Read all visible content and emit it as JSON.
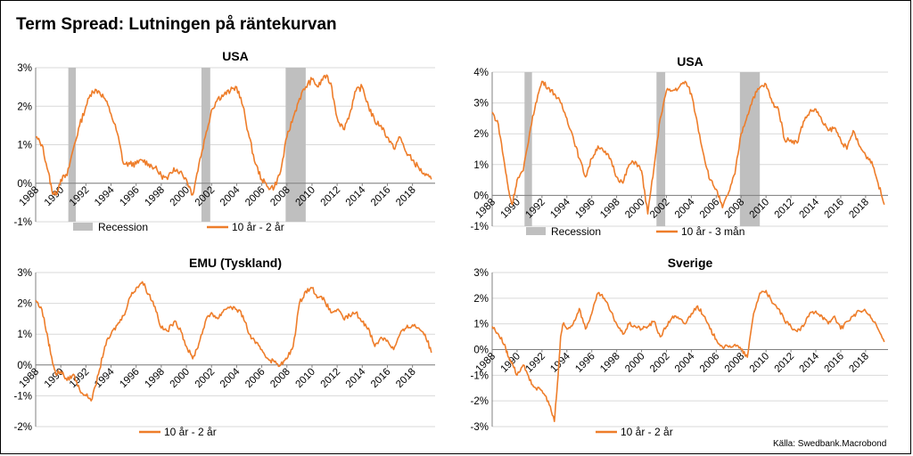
{
  "title": "Term Spread: Lutningen på räntekurvan",
  "source": "Källa: Swedbank.Macrobond",
  "colors": {
    "series": "#ee7d2a",
    "recession": "#bfbfbf"
  },
  "chart_data": [
    {
      "type": "line",
      "title": "USA",
      "ylim": [
        -1,
        3
      ],
      "yticks": [
        "-1%",
        "0%",
        "1%",
        "2%",
        "3%"
      ],
      "xticks": [
        "1988",
        "1990",
        "1992",
        "1994",
        "1996",
        "1998",
        "2000",
        "2002",
        "2004",
        "2006",
        "2008",
        "2010",
        "2012",
        "2014",
        "2016",
        "2018"
      ],
      "xlim": [
        1988,
        2019.8
      ],
      "recessions": [
        [
          1990.6,
          1991.2
        ],
        [
          2001.2,
          2001.9
        ],
        [
          2007.9,
          2009.5
        ]
      ],
      "legend": [
        "Recession",
        "10 år - 2 år"
      ],
      "series": [
        {
          "name": "10 år - 2 år",
          "x": [
            1988.0,
            1988.5,
            1989.0,
            1989.3,
            1989.6,
            1990.0,
            1990.5,
            1991.0,
            1991.5,
            1992.0,
            1992.5,
            1993.0,
            1993.5,
            1994.0,
            1994.5,
            1995.0,
            1995.5,
            1996.0,
            1996.5,
            1997.0,
            1997.5,
            1998.0,
            1998.5,
            1999.0,
            1999.5,
            2000.0,
            2000.5,
            2001.0,
            2001.5,
            2002.0,
            2002.5,
            2003.0,
            2003.5,
            2004.0,
            2004.5,
            2005.0,
            2005.5,
            2006.0,
            2006.5,
            2007.0,
            2007.5,
            2008.0,
            2008.5,
            2009.0,
            2009.5,
            2010.0,
            2010.5,
            2011.0,
            2011.5,
            2012.0,
            2012.5,
            2013.0,
            2013.5,
            2014.0,
            2014.5,
            2015.0,
            2015.5,
            2016.0,
            2016.5,
            2017.0,
            2017.5,
            2018.0,
            2018.5,
            2019.0,
            2019.5
          ],
          "values": [
            1.2,
            1.0,
            0.3,
            -0.2,
            -0.3,
            0.1,
            0.2,
            0.9,
            1.5,
            2.0,
            2.4,
            2.4,
            2.2,
            1.8,
            1.3,
            0.5,
            0.5,
            0.5,
            0.6,
            0.5,
            0.4,
            0.2,
            0.1,
            0.4,
            0.3,
            0.1,
            -0.3,
            0.5,
            1.2,
            1.9,
            2.2,
            2.3,
            2.4,
            2.5,
            2.0,
            1.2,
            0.5,
            0.1,
            -0.1,
            -0.1,
            0.3,
            1.2,
            1.7,
            2.2,
            2.5,
            2.7,
            2.5,
            2.8,
            2.6,
            1.7,
            1.4,
            1.8,
            2.4,
            2.5,
            2.0,
            1.6,
            1.5,
            1.2,
            0.9,
            1.2,
            0.8,
            0.6,
            0.4,
            0.2,
            0.1
          ]
        }
      ]
    },
    {
      "type": "line",
      "title": "USA",
      "ylim": [
        -1,
        4
      ],
      "yticks": [
        "-1%",
        "0%",
        "1%",
        "2%",
        "3%",
        "4%"
      ],
      "xticks": [
        "1988",
        "1990",
        "1992",
        "1994",
        "1996",
        "1998",
        "2000",
        "2002",
        "2004",
        "2006",
        "2008",
        "2010",
        "2012",
        "2014",
        "2016",
        "2018"
      ],
      "xlim": [
        1988,
        2019.8
      ],
      "recessions": [
        [
          1990.6,
          1991.2
        ],
        [
          2001.2,
          2001.9
        ],
        [
          2007.9,
          2009.5
        ]
      ],
      "legend": [
        "Recession",
        "10 år - 3 mån"
      ],
      "series": [
        {
          "name": "10 år - 3 mån",
          "x": [
            1988.0,
            1988.5,
            1989.0,
            1989.3,
            1989.6,
            1990.0,
            1990.5,
            1991.0,
            1991.5,
            1992.0,
            1992.5,
            1993.0,
            1993.5,
            1994.0,
            1994.5,
            1995.0,
            1995.5,
            1996.0,
            1996.5,
            1997.0,
            1997.5,
            1998.0,
            1998.5,
            1999.0,
            1999.5,
            2000.0,
            2000.5,
            2001.0,
            2001.5,
            2002.0,
            2002.5,
            2003.0,
            2003.5,
            2004.0,
            2004.5,
            2005.0,
            2005.5,
            2006.0,
            2006.5,
            2007.0,
            2007.5,
            2008.0,
            2008.5,
            2009.0,
            2009.5,
            2010.0,
            2010.5,
            2011.0,
            2011.5,
            2012.0,
            2012.5,
            2013.0,
            2013.5,
            2014.0,
            2014.5,
            2015.0,
            2015.5,
            2016.0,
            2016.5,
            2017.0,
            2017.5,
            2018.0,
            2018.5,
            2019.0,
            2019.5
          ],
          "values": [
            2.7,
            2.3,
            1.0,
            0.2,
            -0.3,
            0.5,
            0.8,
            2.0,
            3.0,
            3.7,
            3.5,
            3.3,
            3.0,
            2.5,
            1.9,
            1.2,
            0.6,
            1.2,
            1.6,
            1.4,
            1.2,
            0.6,
            0.4,
            1.0,
            1.1,
            0.8,
            -0.6,
            0.9,
            2.5,
            3.4,
            3.4,
            3.5,
            3.7,
            3.3,
            2.3,
            1.3,
            0.5,
            0.2,
            -0.4,
            0.1,
            0.7,
            2.0,
            2.6,
            3.2,
            3.5,
            3.6,
            3.0,
            2.8,
            1.8,
            1.8,
            1.7,
            2.4,
            2.7,
            2.8,
            2.4,
            2.1,
            2.2,
            1.8,
            1.5,
            2.1,
            1.6,
            1.3,
            1.1,
            0.4,
            -0.3
          ]
        }
      ]
    },
    {
      "type": "line",
      "title": "EMU (Tyskland)",
      "ylim": [
        -2,
        3
      ],
      "yticks": [
        "-2%",
        "-1%",
        "0%",
        "1%",
        "2%",
        "3%"
      ],
      "xticks": [
        "1988",
        "1990",
        "1992",
        "1994",
        "1996",
        "1998",
        "2000",
        "2002",
        "2004",
        "2006",
        "2008",
        "2010",
        "2012",
        "2014",
        "2016",
        "2018"
      ],
      "xlim": [
        1988,
        2019.8
      ],
      "recessions": [],
      "legend": [
        "10 år - 2 år"
      ],
      "series": [
        {
          "name": "10 år - 2 år",
          "x": [
            1988.0,
            1988.5,
            1989.0,
            1989.3,
            1989.6,
            1990.0,
            1990.5,
            1991.0,
            1991.5,
            1992.0,
            1992.5,
            1993.0,
            1993.5,
            1994.0,
            1994.5,
            1995.0,
            1995.5,
            1996.0,
            1996.5,
            1997.0,
            1997.5,
            1998.0,
            1998.5,
            1999.0,
            1999.5,
            2000.0,
            2000.5,
            2001.0,
            2001.5,
            2002.0,
            2002.5,
            2003.0,
            2003.5,
            2004.0,
            2004.5,
            2005.0,
            2005.5,
            2006.0,
            2006.5,
            2007.0,
            2007.5,
            2008.0,
            2008.5,
            2009.0,
            2009.5,
            2010.0,
            2010.5,
            2011.0,
            2011.5,
            2012.0,
            2012.5,
            2013.0,
            2013.5,
            2014.0,
            2014.5,
            2015.0,
            2015.5,
            2016.0,
            2016.5,
            2017.0,
            2017.5,
            2018.0,
            2018.5,
            2019.0,
            2019.5
          ],
          "values": [
            2.1,
            1.8,
            0.8,
            0.2,
            -0.3,
            -0.2,
            -0.5,
            -0.3,
            -0.8,
            -1.0,
            -1.1,
            -0.3,
            0.6,
            1.0,
            1.3,
            1.6,
            2.2,
            2.5,
            2.7,
            2.3,
            1.9,
            1.2,
            1.1,
            1.4,
            1.2,
            0.6,
            0.2,
            0.7,
            1.4,
            1.7,
            1.5,
            1.8,
            1.9,
            1.8,
            1.6,
            1.0,
            0.7,
            0.5,
            0.2,
            0.1,
            0.0,
            0.2,
            0.6,
            2.0,
            2.4,
            2.5,
            2.2,
            2.1,
            1.7,
            1.8,
            1.5,
            1.6,
            1.7,
            1.4,
            1.2,
            0.6,
            0.9,
            0.8,
            0.5,
            1.0,
            1.2,
            1.3,
            1.2,
            1.0,
            0.4
          ]
        }
      ]
    },
    {
      "type": "line",
      "title": "Sverige",
      "ylim": [
        -3,
        3
      ],
      "yticks": [
        "-3%",
        "-2%",
        "-1%",
        "0%",
        "1%",
        "2%",
        "3%"
      ],
      "xticks": [
        "1988",
        "1990",
        "1992",
        "1994",
        "1996",
        "1998",
        "2000",
        "2002",
        "2004",
        "2006",
        "2008",
        "2010",
        "2012",
        "2014",
        "2016",
        "2018"
      ],
      "xlim": [
        1988,
        2019.8
      ],
      "recessions": [],
      "legend": [
        "10 år - 2 år"
      ],
      "series": [
        {
          "name": "10 år - 2 år",
          "x": [
            1988.0,
            1988.5,
            1989.0,
            1989.3,
            1989.6,
            1990.0,
            1990.5,
            1991.0,
            1991.5,
            1992.0,
            1992.5,
            1993.0,
            1993.3,
            1993.5,
            1993.7,
            1994.0,
            1994.5,
            1995.0,
            1995.5,
            1996.0,
            1996.5,
            1997.0,
            1997.5,
            1998.0,
            1998.5,
            1999.0,
            1999.5,
            2000.0,
            2000.5,
            2001.0,
            2001.5,
            2002.0,
            2002.5,
            2003.0,
            2003.5,
            2004.0,
            2004.5,
            2005.0,
            2005.5,
            2006.0,
            2006.5,
            2007.0,
            2007.5,
            2008.0,
            2008.5,
            2009.0,
            2009.5,
            2010.0,
            2010.5,
            2011.0,
            2011.5,
            2012.0,
            2012.5,
            2013.0,
            2013.5,
            2014.0,
            2014.5,
            2015.0,
            2015.5,
            2016.0,
            2016.5,
            2017.0,
            2017.5,
            2018.0,
            2018.5,
            2019.0,
            2019.5
          ],
          "values": [
            0.9,
            0.6,
            0.2,
            -0.3,
            -0.5,
            -1.0,
            -0.6,
            -1.2,
            -1.5,
            -1.6,
            -2.0,
            -2.8,
            -1.0,
            0.5,
            1.0,
            0.8,
            1.0,
            1.6,
            0.8,
            1.4,
            2.2,
            2.0,
            1.5,
            1.0,
            0.6,
            1.0,
            0.9,
            0.8,
            0.9,
            1.1,
            0.5,
            0.9,
            1.3,
            1.2,
            1.0,
            1.4,
            1.7,
            1.3,
            0.8,
            0.4,
            0.1,
            0.1,
            0.2,
            0.0,
            -0.3,
            1.4,
            2.2,
            2.3,
            1.8,
            1.6,
            1.1,
            0.9,
            0.7,
            0.9,
            1.4,
            1.5,
            1.3,
            1.0,
            1.3,
            0.8,
            1.1,
            1.3,
            1.5,
            1.5,
            1.2,
            0.8,
            0.3
          ]
        }
      ]
    }
  ]
}
